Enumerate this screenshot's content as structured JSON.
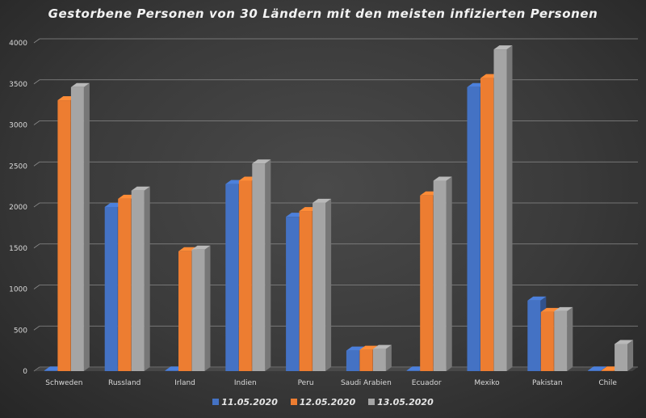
{
  "chart_data": {
    "type": "bar",
    "title": "Gestorbene Personen von 30 Ländern mit den meisten infizierten Personen",
    "xlabel": "",
    "ylabel": "",
    "ylim": [
      0,
      4000
    ],
    "yticks": [
      0,
      500,
      1000,
      1500,
      2000,
      2500,
      3000,
      3500,
      4000
    ],
    "grid": true,
    "legend_position": "bottom",
    "categories": [
      "Schweden",
      "Russland",
      "Irland",
      "Indien",
      "Peru",
      "Saudi Arabien",
      "Ecuador",
      "Mexiko",
      "Pakistan",
      "Chile"
    ],
    "series": [
      {
        "name": "11.05.2020",
        "color": "#4472c4",
        "values": [
          0,
          2000,
          0,
          2280,
          1880,
          250,
          0,
          3460,
          860,
          0
        ]
      },
      {
        "name": "12.05.2020",
        "color": "#ed7d31",
        "values": [
          3300,
          2100,
          1460,
          2320,
          1950,
          260,
          2140,
          3570,
          720,
          0
        ]
      },
      {
        "name": "13.05.2020",
        "color": "#a5a5a5",
        "values": [
          3460,
          2200,
          1480,
          2530,
          2050,
          270,
          2320,
          3920,
          730,
          330
        ]
      }
    ]
  }
}
